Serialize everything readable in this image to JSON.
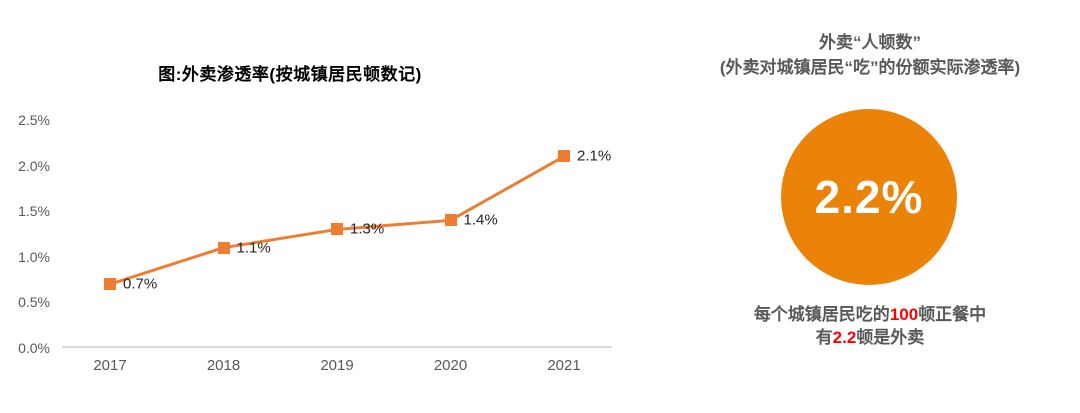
{
  "left_chart": {
    "title": "图:外卖渗透率(按城镇居民顿数记)"
  },
  "chart_data": {
    "type": "line",
    "title": "图:外卖渗透率(按城镇居民顿数记)",
    "categories": [
      "2017",
      "2018",
      "2019",
      "2020",
      "2021"
    ],
    "values": [
      0.7,
      1.1,
      1.3,
      1.4,
      2.1
    ],
    "point_labels": [
      "0.7%",
      "1.1%",
      "1.3%",
      "1.4%",
      "2.1%"
    ],
    "xlabel": "",
    "ylabel": "",
    "ylim": [
      0,
      2.5
    ],
    "ytick_labels": [
      "0.0%",
      "0.5%",
      "1.0%",
      "1.5%",
      "2.0%",
      "2.5%"
    ],
    "grid": false,
    "legend": "none",
    "marker_shape": "square",
    "colors": {
      "line": "#ED7D31",
      "marker": "#ED7D31",
      "point_label": "#262626",
      "axis_label": "#595959",
      "axis_line": "#D9D9D9",
      "title": "#000000"
    }
  },
  "right_panel": {
    "title_line1": "外卖“人顿数”",
    "title_line2": "(外卖对城镇居民“吃”的份额实际渗透率)",
    "circle": {
      "value": "2.2%",
      "bg_color": "#EA8308",
      "text_color": "#FFFFFF"
    },
    "caption": {
      "line1_pre": "每个城镇居民吃的",
      "line1_highlight": "100",
      "line1_post": "顿正餐中",
      "line2_pre": "有",
      "line2_highlight": "2.2",
      "line2_post": "顿是外卖",
      "text_color": "#595959",
      "highlight_color": "#FF0000"
    }
  }
}
